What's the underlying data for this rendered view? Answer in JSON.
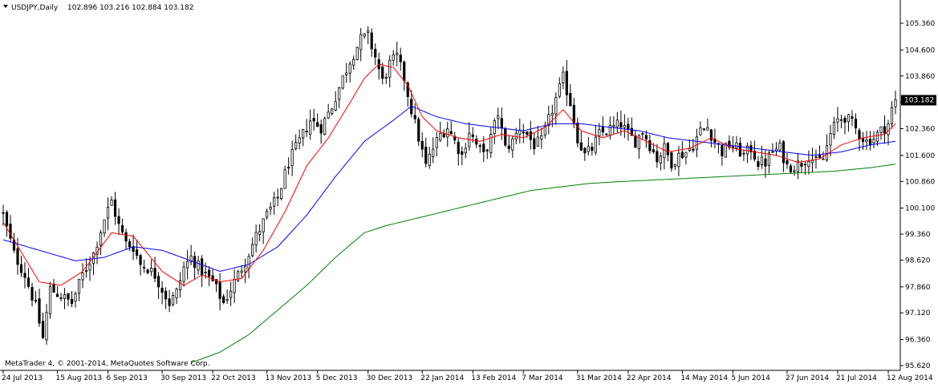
{
  "header": {
    "symbol_label": "USDJPY,Daily",
    "ohlc": "102.896 103.216 102.884 103.182"
  },
  "footer": {
    "copyright": "MetaTrader 4, © 2001-2014, MetaQuotes Software Corp."
  },
  "colors": {
    "background": "#ffffff",
    "candle": "#000000",
    "ma_fast": "#ff0000",
    "ma_slow": "#0000ff",
    "ma_long": "#008000",
    "axis": "#000000",
    "price_label_bg": "#000000",
    "price_label_text": "#ffffff"
  },
  "chart_data": {
    "type": "candlestick",
    "symbol": "USDJPY",
    "timeframe": "Daily",
    "current_price": "103.182",
    "grid": false,
    "y_range": [
      95.62,
      105.74
    ],
    "y_ticks": [
      "105.360",
      "104.600",
      "103.860",
      "103.100",
      "102.360",
      "101.600",
      "100.860",
      "100.100",
      "99.360",
      "98.620",
      "97.860",
      "97.120",
      "96.360",
      "95.620"
    ],
    "x_ticks": [
      "24 Jul 2013",
      "15 Aug 2013",
      "6 Sep 2013",
      "30 Sep 2013",
      "22 Oct 2013",
      "13 Nov 2013",
      "5 Dec 2013",
      "30 Dec 2013",
      "22 Jan 2014",
      "13 Feb 2014",
      "7 Mar 2014",
      "31 Mar 2014",
      "22 Apr 2014",
      "14 May 2014",
      "5 Jun 2014",
      "27 Jun 2014",
      "21 Jul 2014",
      "12 Aug 2014"
    ],
    "close_anchors": [
      [
        0,
        99.9
      ],
      [
        3,
        98.8
      ],
      [
        6,
        98.2
      ],
      [
        9,
        97.3
      ],
      [
        11,
        96.4
      ],
      [
        13,
        97.8
      ],
      [
        16,
        97.6
      ],
      [
        19,
        97.4
      ],
      [
        22,
        98.2
      ],
      [
        25,
        98.8
      ],
      [
        28,
        99.8
      ],
      [
        30,
        100.3
      ],
      [
        32,
        99.6
      ],
      [
        34,
        99.1
      ],
      [
        36,
        99.0
      ],
      [
        38,
        98.5
      ],
      [
        40,
        98.4
      ],
      [
        42,
        98.2
      ],
      [
        44,
        97.8
      ],
      [
        46,
        97.4
      ],
      [
        48,
        97.7
      ],
      [
        50,
        98.4
      ],
      [
        52,
        98.7
      ],
      [
        55,
        98.3
      ],
      [
        58,
        98.0
      ],
      [
        61,
        97.4
      ],
      [
        64,
        98.0
      ],
      [
        67,
        98.6
      ],
      [
        70,
        99.3
      ],
      [
        73,
        99.9
      ],
      [
        76,
        100.4
      ],
      [
        79,
        101.4
      ],
      [
        82,
        102.0
      ],
      [
        85,
        102.6
      ],
      [
        88,
        102.4
      ],
      [
        91,
        103.0
      ],
      [
        94,
        103.8
      ],
      [
        96,
        104.3
      ],
      [
        99,
        104.9
      ],
      [
        101,
        105.0
      ],
      [
        103,
        104.4
      ],
      [
        105,
        103.7
      ],
      [
        107,
        104.2
      ],
      [
        109,
        104.4
      ],
      [
        111,
        103.8
      ],
      [
        113,
        102.9
      ],
      [
        115,
        102.1
      ],
      [
        117,
        101.3
      ],
      [
        119,
        101.8
      ],
      [
        121,
        102.2
      ],
      [
        123,
        102.4
      ],
      [
        125,
        102.0
      ],
      [
        127,
        101.6
      ],
      [
        129,
        102.3
      ],
      [
        131,
        101.9
      ],
      [
        133,
        101.6
      ],
      [
        135,
        102.1
      ],
      [
        137,
        102.8
      ],
      [
        139,
        101.8
      ],
      [
        141,
        102.0
      ],
      [
        143,
        102.4
      ],
      [
        145,
        102.2
      ],
      [
        147,
        101.9
      ],
      [
        149,
        102.0
      ],
      [
        151,
        102.6
      ],
      [
        153,
        103.2
      ],
      [
        155,
        103.8
      ],
      [
        157,
        103.1
      ],
      [
        159,
        102.1
      ],
      [
        161,
        101.6
      ],
      [
        163,
        101.8
      ],
      [
        165,
        102.2
      ],
      [
        167,
        102.3
      ],
      [
        169,
        102.4
      ],
      [
        171,
        102.5
      ],
      [
        173,
        102.2
      ],
      [
        175,
        102.0
      ],
      [
        177,
        102.3
      ],
      [
        179,
        101.9
      ],
      [
        181,
        101.5
      ],
      [
        183,
        101.8
      ],
      [
        185,
        101.4
      ],
      [
        187,
        101.6
      ],
      [
        189,
        101.7
      ],
      [
        191,
        101.9
      ],
      [
        193,
        102.3
      ],
      [
        195,
        102.4
      ],
      [
        197,
        102.0
      ],
      [
        199,
        101.7
      ],
      [
        201,
        101.9
      ],
      [
        203,
        101.8
      ],
      [
        205,
        101.6
      ],
      [
        207,
        101.8
      ],
      [
        209,
        101.4
      ],
      [
        211,
        101.4
      ],
      [
        213,
        101.7
      ],
      [
        215,
        101.8
      ],
      [
        217,
        101.3
      ],
      [
        219,
        101.3
      ],
      [
        221,
        101.4
      ],
      [
        223,
        101.6
      ],
      [
        225,
        101.4
      ],
      [
        227,
        101.5
      ],
      [
        229,
        102.2
      ],
      [
        231,
        102.6
      ],
      [
        233,
        102.7
      ],
      [
        235,
        102.5
      ],
      [
        237,
        102.2
      ],
      [
        239,
        102.0
      ],
      [
        241,
        102.1
      ],
      [
        243,
        102.3
      ],
      [
        245,
        102.5
      ],
      [
        246,
        102.9
      ],
      [
        247,
        103.18
      ]
    ],
    "ma_fast_anchors": [
      [
        0,
        99.7
      ],
      [
        10,
        98.0
      ],
      [
        16,
        97.9
      ],
      [
        22,
        98.3
      ],
      [
        30,
        99.4
      ],
      [
        36,
        99.3
      ],
      [
        44,
        98.3
      ],
      [
        50,
        97.9
      ],
      [
        55,
        98.2
      ],
      [
        60,
        98.0
      ],
      [
        66,
        98.1
      ],
      [
        72,
        98.9
      ],
      [
        78,
        100.0
      ],
      [
        84,
        101.3
      ],
      [
        90,
        102.1
      ],
      [
        96,
        103.1
      ],
      [
        100,
        103.8
      ],
      [
        104,
        104.2
      ],
      [
        108,
        104.1
      ],
      [
        112,
        103.6
      ],
      [
        116,
        102.7
      ],
      [
        120,
        102.3
      ],
      [
        126,
        102.1
      ],
      [
        132,
        102.0
      ],
      [
        138,
        102.2
      ],
      [
        144,
        102.1
      ],
      [
        150,
        102.4
      ],
      [
        155,
        102.9
      ],
      [
        160,
        102.3
      ],
      [
        166,
        102.1
      ],
      [
        172,
        102.3
      ],
      [
        178,
        102.0
      ],
      [
        184,
        101.7
      ],
      [
        190,
        101.8
      ],
      [
        196,
        102.1
      ],
      [
        202,
        101.8
      ],
      [
        208,
        101.7
      ],
      [
        214,
        101.6
      ],
      [
        220,
        101.4
      ],
      [
        226,
        101.5
      ],
      [
        232,
        101.9
      ],
      [
        238,
        102.1
      ],
      [
        244,
        102.2
      ],
      [
        247,
        102.5
      ]
    ],
    "ma_slow_anchors": [
      [
        0,
        99.2
      ],
      [
        10,
        98.9
      ],
      [
        20,
        98.6
      ],
      [
        28,
        98.7
      ],
      [
        36,
        99.0
      ],
      [
        44,
        98.9
      ],
      [
        52,
        98.6
      ],
      [
        60,
        98.3
      ],
      [
        68,
        98.5
      ],
      [
        76,
        99.0
      ],
      [
        84,
        99.9
      ],
      [
        92,
        101.0
      ],
      [
        100,
        102.0
      ],
      [
        108,
        102.6
      ],
      [
        113,
        103.0
      ],
      [
        120,
        102.7
      ],
      [
        128,
        102.5
      ],
      [
        136,
        102.4
      ],
      [
        144,
        102.3
      ],
      [
        152,
        102.5
      ],
      [
        160,
        102.5
      ],
      [
        168,
        102.4
      ],
      [
        176,
        102.3
      ],
      [
        184,
        102.1
      ],
      [
        192,
        102.0
      ],
      [
        200,
        101.9
      ],
      [
        208,
        101.8
      ],
      [
        216,
        101.7
      ],
      [
        224,
        101.6
      ],
      [
        232,
        101.7
      ],
      [
        240,
        101.9
      ],
      [
        247,
        102.0
      ]
    ],
    "ma_long_anchors": [
      [
        52,
        95.7
      ],
      [
        60,
        96.0
      ],
      [
        68,
        96.5
      ],
      [
        76,
        97.2
      ],
      [
        84,
        97.9
      ],
      [
        92,
        98.7
      ],
      [
        100,
        99.4
      ],
      [
        106,
        99.6
      ],
      [
        114,
        99.8
      ],
      [
        122,
        100.0
      ],
      [
        130,
        100.2
      ],
      [
        138,
        100.4
      ],
      [
        146,
        100.6
      ],
      [
        154,
        100.7
      ],
      [
        162,
        100.8
      ],
      [
        170,
        100.85
      ],
      [
        180,
        100.9
      ],
      [
        190,
        100.95
      ],
      [
        200,
        101.0
      ],
      [
        210,
        101.05
      ],
      [
        220,
        101.1
      ],
      [
        230,
        101.15
      ],
      [
        240,
        101.25
      ],
      [
        247,
        101.35
      ]
    ],
    "n_bars": 248,
    "x_tick_bar_index": [
      0,
      15,
      29,
      44,
      58,
      73,
      87,
      101,
      116,
      130,
      144,
      159,
      173,
      188,
      202,
      217,
      231,
      245
    ]
  }
}
